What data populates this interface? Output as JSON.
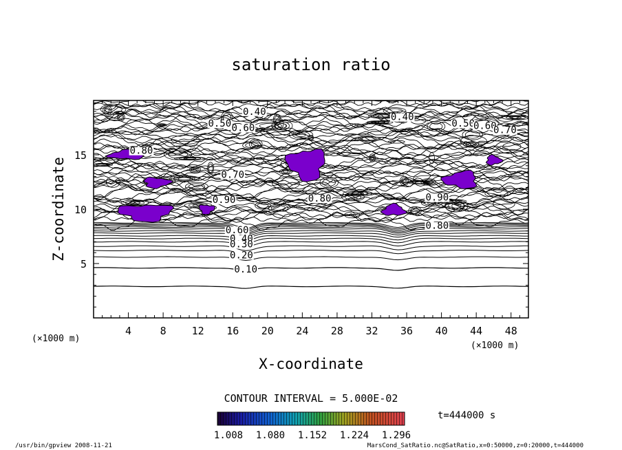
{
  "chart_data": {
    "type": "contour",
    "title": "saturation ratio",
    "xlabel": "X-coordinate",
    "ylabel": "Z-coordinate",
    "x_unit_left": "(×1000 m)",
    "x_unit_right": "(×1000 m)",
    "xlim": [
      0,
      50
    ],
    "ylim": [
      0,
      20
    ],
    "x_ticks": [
      4,
      8,
      12,
      16,
      20,
      24,
      28,
      32,
      36,
      40,
      44,
      48
    ],
    "y_ticks": [
      5,
      10,
      15
    ],
    "contour_interval_text": "CONTOUR INTERVAL = 5.000E-02",
    "time_text": "t=444000 s",
    "colorbar_labels": [
      "1.008",
      "1.080",
      "1.152",
      "1.224",
      "1.296"
    ],
    "colorbar_range": [
      1.008,
      1.296
    ],
    "contour_labels": [
      {
        "text": "0.40",
        "x": 18.5,
        "y": 19.0
      },
      {
        "text": "0.40",
        "x": 35.5,
        "y": 18.5
      },
      {
        "text": "0.50",
        "x": 14.5,
        "y": 17.9
      },
      {
        "text": "0.60",
        "x": 17.2,
        "y": 17.5
      },
      {
        "text": "0.50",
        "x": 42.5,
        "y": 17.9
      },
      {
        "text": "0.60",
        "x": 45.0,
        "y": 17.7
      },
      {
        "text": "0.70",
        "x": 47.3,
        "y": 17.3
      },
      {
        "text": "0.80",
        "x": 5.5,
        "y": 15.4
      },
      {
        "text": "0.70",
        "x": 16.0,
        "y": 13.2
      },
      {
        "text": "0.90",
        "x": 15.0,
        "y": 10.9
      },
      {
        "text": "0.80",
        "x": 26.0,
        "y": 11.0
      },
      {
        "text": "0.90",
        "x": 39.5,
        "y": 11.1
      },
      {
        "text": "0.80",
        "x": 39.5,
        "y": 8.5
      },
      {
        "text": "0.60",
        "x": 16.5,
        "y": 8.1
      },
      {
        "text": "0.40",
        "x": 17.0,
        "y": 7.3
      },
      {
        "text": "0.30",
        "x": 17.0,
        "y": 6.8
      },
      {
        "text": "0.20",
        "x": 17.0,
        "y": 5.8
      },
      {
        "text": "0.10",
        "x": 17.5,
        "y": 4.5
      }
    ],
    "shaded_regions": [
      {
        "x": [
          1.5,
          6.0
        ],
        "y": [
          14.5,
          15.5
        ]
      },
      {
        "x": [
          2.5,
          9.5
        ],
        "y": [
          8.8,
          10.6
        ]
      },
      {
        "x": [
          22.0,
          27.0
        ],
        "y": [
          12.5,
          15.8
        ]
      },
      {
        "x": [
          40.0,
          44.5
        ],
        "y": [
          11.8,
          13.6
        ]
      },
      {
        "x": [
          45.0,
          47.0
        ],
        "y": [
          14.0,
          15.0
        ]
      },
      {
        "x": [
          33.0,
          36.0
        ],
        "y": [
          9.3,
          10.5
        ]
      },
      {
        "x": [
          5.5,
          9.0
        ],
        "y": [
          11.9,
          13.0
        ]
      },
      {
        "x": [
          12.0,
          14.0
        ],
        "y": [
          9.5,
          10.5
        ]
      }
    ]
  },
  "footer": {
    "left": "/usr/bin/gpview  2008-11-21",
    "right": "MarsCond_SatRatio.nc@SatRatio,x=0:50000,z=0:20000,t=444000"
  },
  "colors": {
    "shade": "#7a00cc",
    "shade_dark": "#3c1aa8",
    "line": "#000000"
  }
}
